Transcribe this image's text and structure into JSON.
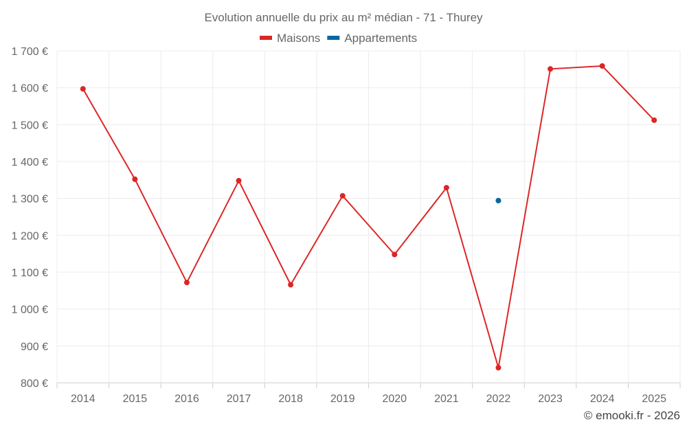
{
  "chart_data": {
    "type": "line",
    "title": "Evolution annuelle du prix au m² médian - 71 - Thurey",
    "categories": [
      "2014",
      "2015",
      "2016",
      "2017",
      "2018",
      "2019",
      "2020",
      "2021",
      "2022",
      "2023",
      "2024",
      "2025"
    ],
    "series": [
      {
        "name": "Maisons",
        "color": "#dc2626",
        "values": [
          1597,
          1352,
          1072,
          1348,
          1066,
          1307,
          1148,
          1329,
          841,
          1651,
          1659,
          1512
        ]
      },
      {
        "name": "Appartements",
        "color": "#0369a1",
        "values": [
          null,
          null,
          null,
          null,
          null,
          null,
          null,
          null,
          1294,
          null,
          null,
          null
        ]
      }
    ],
    "ylim": [
      800,
      1700
    ],
    "yticks": [
      800,
      900,
      1000,
      1100,
      1200,
      1300,
      1400,
      1500,
      1600,
      1700
    ],
    "ytick_labels": [
      "800 €",
      "900 €",
      "1 000 €",
      "1 100 €",
      "1 200 €",
      "1 300 €",
      "1 400 €",
      "1 500 €",
      "1 600 €",
      "1 700 €"
    ],
    "xlabel": "",
    "ylabel": "",
    "grid": true,
    "legend": "top-center"
  },
  "credit": "© emooki.fr - 2026"
}
